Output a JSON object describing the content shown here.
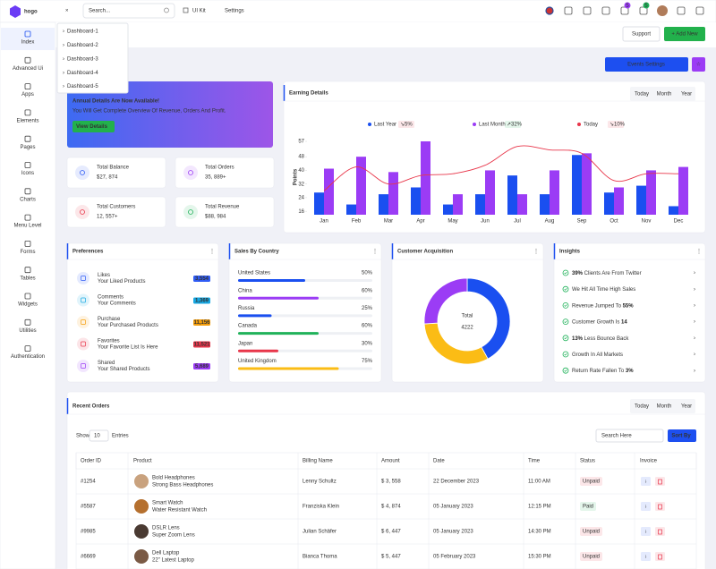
{
  "topbar": {
    "logo": "hogo",
    "search": "Search...",
    "menu": [
      "UI Kit",
      "Settings"
    ],
    "badges": [
      "5",
      "5"
    ]
  },
  "sidebar": [
    "Index",
    "Advanced Ui",
    "Apps",
    "Elements",
    "Pages",
    "Icons",
    "Charts",
    "Menu Level",
    "Forms",
    "Tables",
    "Widgets",
    "Utilities",
    "Authentication"
  ],
  "dropdown": [
    "Dashboard-1",
    "Dashboard-2",
    "Dashboard-3",
    "Dashboard-4",
    "Dashboard-5"
  ],
  "header": {
    "support": "Support",
    "add_new": "+ Add New",
    "events": "Events Settings"
  },
  "banner": {
    "title": "Annual Details Are Now Available!",
    "subtitle": "You Will Get Complete Overview Of Revenue, Orders And Profit.",
    "button": "View Details"
  },
  "stats": [
    {
      "label": "Total Balance",
      "value": "$27, 874",
      "color": "#2f5cf5"
    },
    {
      "label": "Total Orders",
      "value": "35, 889+",
      "color": "#9b3cf5"
    },
    {
      "label": "Total Customers",
      "value": "12, 557+",
      "color": "#e8364a"
    },
    {
      "label": "Total Revenue",
      "value": "$88, 984",
      "color": "#20b25a"
    }
  ],
  "chart_data": [
    {
      "type": "bar",
      "title": "Earning Details",
      "tabs": [
        "Today",
        "Month",
        "Year"
      ],
      "y_label": "Points",
      "categories": [
        "Jan",
        "Feb",
        "Mar",
        "Apr",
        "May",
        "Jun",
        "Jul",
        "Aug",
        "Sep",
        "Oct",
        "Nov",
        "Dec"
      ],
      "series": [
        {
          "name": "Last Year",
          "color": "#1a4ff0",
          "change": "5%",
          "trend": "down",
          "values": [
            27,
            20,
            26,
            30,
            20,
            26,
            37,
            26,
            49,
            27,
            31,
            19
          ]
        },
        {
          "name": "Last Month",
          "color": "#9b3cf5",
          "change": "32%",
          "trend": "up",
          "values": [
            41,
            48,
            39,
            57,
            26,
            40,
            26,
            40,
            50,
            30,
            40,
            42
          ]
        },
        {
          "name": "Today",
          "type": "line",
          "color": "#e8364a",
          "change": "10%",
          "trend": "down",
          "values": [
            28,
            42,
            32,
            37,
            38,
            43,
            54,
            52,
            50,
            34,
            38,
            38
          ]
        }
      ],
      "ylim": [
        14,
        57
      ],
      "yticks": [
        16,
        24,
        32,
        40,
        48,
        57
      ],
      "grid": false
    },
    {
      "type": "pie",
      "title": "Customer Acquisition",
      "values": [
        42,
        32,
        26
      ],
      "colors": [
        "#1a4ff0",
        "#fbbc15",
        "#9b3cf5"
      ],
      "center_label": "Total",
      "center_value": 4222
    }
  ],
  "preferences": {
    "title": "Preferences",
    "items": [
      {
        "name": "Likes",
        "desc": "Your Liked Products",
        "count": "3,554",
        "color": "#2f5cf5"
      },
      {
        "name": "Comments",
        "desc": "Your Comments",
        "count": "1,369",
        "color": "#17a8e3"
      },
      {
        "name": "Purchase",
        "desc": "Your Purchased Products",
        "count": "11,156",
        "color": "#f59e0b"
      },
      {
        "name": "Favorites",
        "desc": "Your Favorite List Is Here",
        "count": "11,521",
        "color": "#e8364a"
      },
      {
        "name": "Shared",
        "desc": "Your Shared Products",
        "count": "5,689",
        "color": "#9b3cf5"
      }
    ]
  },
  "sales_by_country": {
    "title": "Sales By Country",
    "categories": [
      "United States",
      "China",
      "Russia",
      "Canada",
      "Japan",
      "United Kingdom"
    ],
    "values": [
      50,
      60,
      25,
      60,
      30,
      75
    ],
    "value_labels": [
      "50%",
      "60%",
      "25%",
      "60%",
      "30%",
      "75%"
    ],
    "colors": [
      "#1a4ff0",
      "#9b3cf5",
      "#1a4ff0",
      "#20b25a",
      "#e8364a",
      "#fbbc15"
    ],
    "xlim": [
      0,
      100
    ]
  },
  "insights": {
    "title": "Insights",
    "items": [
      {
        "parts": [
          "39%",
          " Clients Are From Twitter"
        ],
        "bold": 0
      },
      {
        "parts": [
          "We Hit All Time High Sales"
        ]
      },
      {
        "parts": [
          "Revenue Jumped To ",
          "55%"
        ],
        "bold": 1
      },
      {
        "parts": [
          "Customer Growth Is ",
          "14"
        ],
        "bold": 1
      },
      {
        "parts": [
          "13%",
          " Less Bounce Back"
        ],
        "bold": 0
      },
      {
        "parts": [
          "Growth In All Markets"
        ]
      },
      {
        "parts": [
          "Return Rate Fallen To ",
          "3%"
        ],
        "bold": 1
      }
    ]
  },
  "orders": {
    "title": "Recent Orders",
    "tabs": [
      "Today",
      "Month",
      "Year"
    ],
    "show": "Show",
    "entries_count": "10",
    "entries": "Entries",
    "search": "Search Here",
    "sort": "Sort By",
    "columns": [
      "Order ID",
      "Product",
      "Billing Name",
      "Amount",
      "Date",
      "Time",
      "Status",
      "Invoice"
    ],
    "rows": [
      {
        "order_id": "#1254",
        "product": "Bold Headphones",
        "product_desc": "Strong Bass Headphones",
        "billing_name": "Lenny Schultz",
        "amount": "$ 3, 558",
        "date": "22 December 2023",
        "time": "11:00 AM",
        "status": "Unpaid"
      },
      {
        "order_id": "#5587",
        "product": "Smart Watch",
        "product_desc": "Water Resistant Watch",
        "billing_name": "Franziska Klein",
        "amount": "$ 4, 874",
        "date": "05 January 2023",
        "time": "12:15 PM",
        "status": "Paid"
      },
      {
        "order_id": "#9985",
        "product": "DSLR Lens",
        "product_desc": "Super Zoom Lens",
        "billing_name": "Julian Schäfer",
        "amount": "$ 6, 447",
        "date": "05 January 2023",
        "time": "14:30 PM",
        "status": "Unpaid"
      },
      {
        "order_id": "#6669",
        "product": "Dell Laptop",
        "product_desc": "22\" Latest Laptop",
        "billing_name": "Bianca Thoma",
        "amount": "$ 5, 447",
        "date": "05 February 2023",
        "time": "15:30 PM",
        "status": "Unpaid"
      }
    ]
  }
}
